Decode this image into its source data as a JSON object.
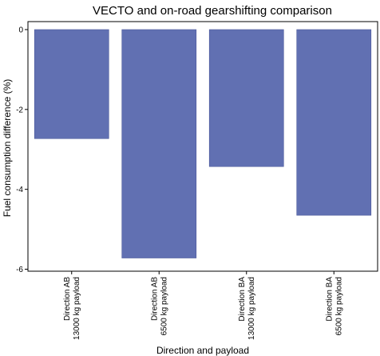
{
  "chart_data": {
    "type": "bar",
    "title": "VECTO and on-road gearshifting comparison",
    "xlabel": "Direction and payload",
    "ylabel": "Fuel consumption difference (%)",
    "categories": [
      [
        "Direction AB",
        "13000 kg payload"
      ],
      [
        "Direction AB",
        "6500 kg payload"
      ],
      [
        "Direction BA",
        "13000 kg payload"
      ],
      [
        "Direction BA",
        "6500 kg payload"
      ]
    ],
    "values": [
      -2.73,
      -5.72,
      -3.43,
      -4.65
    ],
    "yticks": [
      0,
      -2,
      -4,
      -6
    ],
    "ytick_labels": [
      "0",
      "-2",
      "-4",
      "-6"
    ],
    "ylim": [
      -6.05,
      0.2
    ],
    "bar_color": "#6170b2",
    "bar_edge_color": "#4d5a9a",
    "grid": false
  }
}
